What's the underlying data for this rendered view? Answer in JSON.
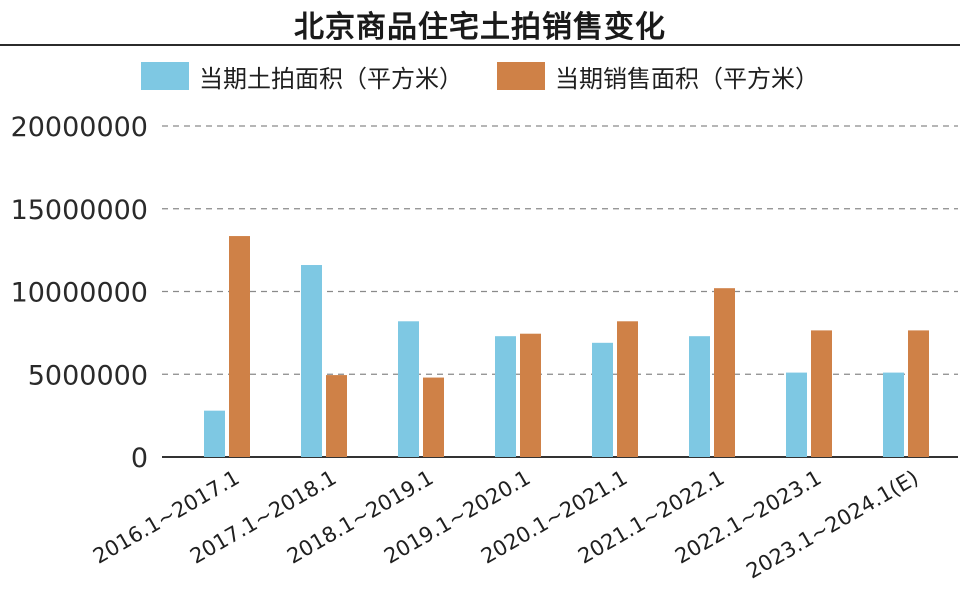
{
  "chart_data": {
    "type": "bar",
    "title": "北京商品住宅土拍销售变化",
    "categories": [
      "2016.1~2017.1",
      "2017.1~2018.1",
      "2018.1~2019.1",
      "2019.1~2020.1",
      "2020.1~2021.1",
      "2021.1~2022.1",
      "2022.1~2023.1",
      "2023.1~2024.1(E)"
    ],
    "series": [
      {
        "name": "当期土拍面积（平方米）",
        "color": "#7ec8e3",
        "values": [
          2800000,
          11600000,
          8200000,
          7300000,
          6900000,
          7300000,
          5100000,
          5100000
        ]
      },
      {
        "name": "当期销售面积（平方米）",
        "color": "#cf8147",
        "values": [
          13350000,
          4950000,
          4800000,
          7450000,
          8200000,
          10200000,
          7650000,
          7650000
        ]
      }
    ],
    "yticks": [
      "0",
      "5000000",
      "10000000",
      "15000000",
      "20000000"
    ],
    "ylim": [
      0,
      20000000
    ],
    "grid": true,
    "legend_position": "top"
  }
}
